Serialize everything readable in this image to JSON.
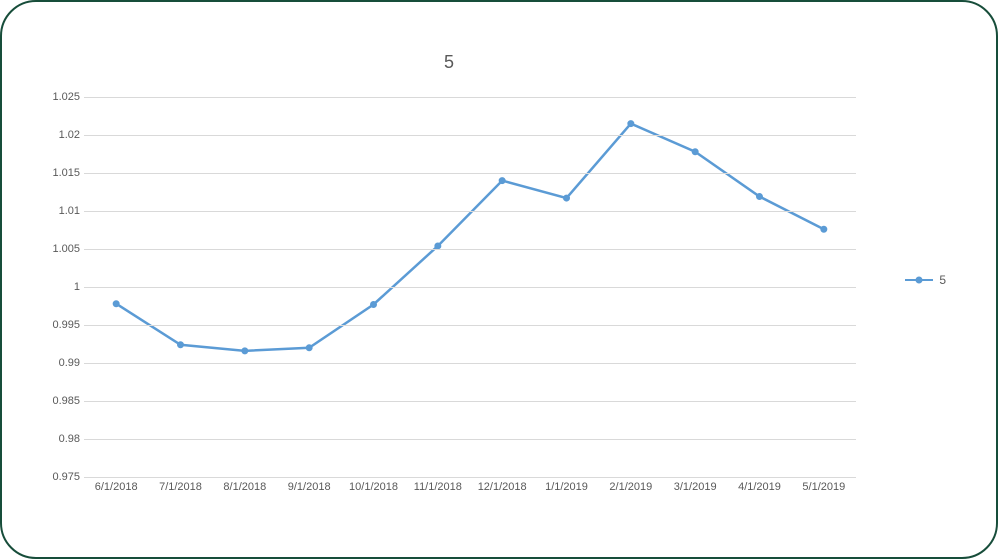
{
  "chart": {
    "type": "line",
    "title": "5",
    "title_fontsize": 18,
    "title_color": "#595959",
    "background_color": "#ffffff",
    "card_border_color": "#174d3a",
    "card_border_radius": 36,
    "grid_color": "#d9d9d9",
    "axis_label_color": "#595959",
    "axis_label_fontsize": 11,
    "x_categories": [
      "6/1/2018",
      "7/1/2018",
      "8/1/2018",
      "9/1/2018",
      "10/1/2018",
      "11/1/2018",
      "12/1/2018",
      "1/1/2019",
      "2/1/2019",
      "3/1/2019",
      "4/1/2019",
      "5/1/2019"
    ],
    "ylim": [
      0.975,
      1.025
    ],
    "ytick_step": 0.005,
    "yticks": [
      "0.975",
      "0.98",
      "0.985",
      "0.99",
      "0.995",
      "1",
      "1.005",
      "1.01",
      "1.015",
      "1.02",
      "1.025"
    ],
    "series": [
      {
        "name": "5",
        "values": [
          0.9978,
          0.9924,
          0.9916,
          0.992,
          0.9977,
          1.0054,
          1.014,
          1.0117,
          1.0215,
          1.0178,
          1.0119,
          1.0076
        ],
        "line_color": "#5b9bd5",
        "line_width": 2.5,
        "marker": "circle",
        "marker_size": 6,
        "marker_fill": "#5b9bd5",
        "marker_stroke": "#5b9bd5"
      }
    ],
    "legend": {
      "position": "right",
      "fontsize": 12,
      "color": "#595959"
    }
  }
}
